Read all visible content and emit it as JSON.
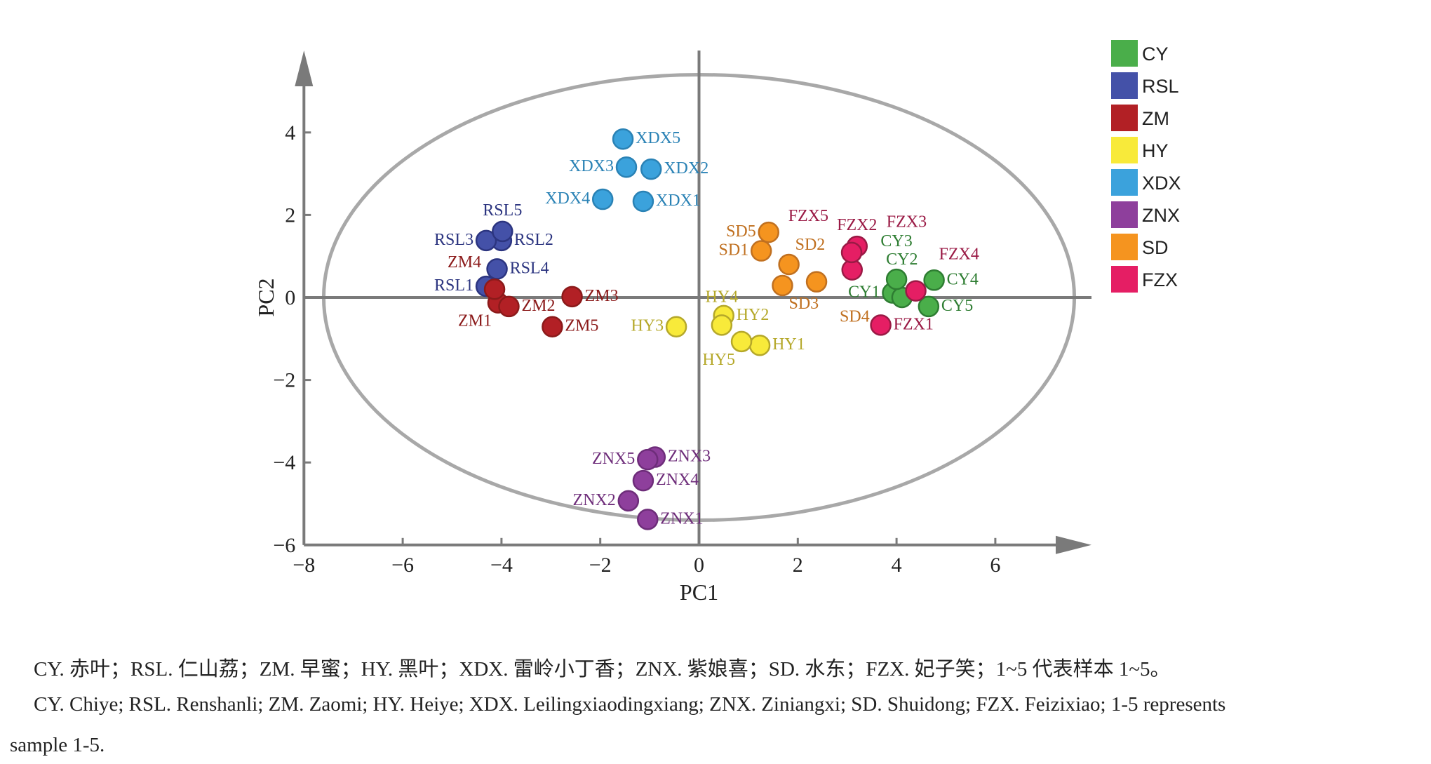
{
  "chart_data": {
    "type": "scatter",
    "xlabel": "PC1",
    "ylabel": "PC2",
    "xlim": [
      -8,
      8
    ],
    "ylim": [
      -6,
      5.5
    ],
    "xticks": [
      -8,
      -6,
      -4,
      -2,
      0,
      2,
      4,
      6
    ],
    "yticks": [
      -6,
      -4,
      -2,
      0,
      2,
      4
    ],
    "xtick_labels": [
      "−8",
      "−6",
      "−4",
      "−2",
      "0",
      "2",
      "4",
      "6"
    ],
    "ytick_labels": [
      "−6",
      "−4",
      "−2",
      "0",
      "2",
      "4"
    ],
    "confidence_ellipse": {
      "center": [
        0,
        0
      ],
      "semi_axes": [
        7.6,
        5.4
      ]
    },
    "legend_position": "top-right",
    "series": [
      {
        "name": "CY",
        "color": "#4aae4a",
        "label_color": "#2e7d32",
        "points": [
          [
            "CY1",
            3.92,
            0.11
          ],
          [
            "CY2",
            4.11,
            0.0
          ],
          [
            "CY3",
            4.0,
            0.44
          ],
          [
            "CY4",
            4.76,
            0.42
          ],
          [
            "CY5",
            4.65,
            -0.22
          ]
        ]
      },
      {
        "name": "RSL",
        "color": "#4451a8",
        "label_color": "#2c3580",
        "points": [
          [
            "RSL1",
            -4.31,
            0.27
          ],
          [
            "RSL2",
            -4.0,
            1.38
          ],
          [
            "RSL3",
            -4.31,
            1.38
          ],
          [
            "RSL4",
            -4.09,
            0.69
          ],
          [
            "RSL5",
            -3.98,
            1.6
          ]
        ]
      },
      {
        "name": "ZM",
        "color": "#b22025",
        "label_color": "#8b1a1a",
        "points": [
          [
            "ZM1",
            -4.07,
            -0.13
          ],
          [
            "ZM2",
            -3.85,
            -0.22
          ],
          [
            "ZM3",
            -2.57,
            0.02
          ],
          [
            "ZM4",
            -4.14,
            0.2
          ],
          [
            "ZM5",
            -2.97,
            -0.71
          ]
        ]
      },
      {
        "name": "HY",
        "color": "#f8ea3a",
        "label_color": "#b5a82a",
        "points": [
          [
            "HY1",
            1.23,
            -1.16
          ],
          [
            "HY2",
            0.5,
            -0.44
          ],
          [
            "HY3",
            -0.46,
            -0.71
          ],
          [
            "HY4",
            0.46,
            -0.67
          ],
          [
            "HY5",
            0.86,
            -1.07
          ]
        ]
      },
      {
        "name": "XDX",
        "color": "#3ba2dc",
        "label_color": "#2a82b5",
        "points": [
          [
            "XDX1",
            -1.13,
            2.33
          ],
          [
            "XDX2",
            -0.97,
            3.11
          ],
          [
            "XDX3",
            -1.47,
            3.16
          ],
          [
            "XDX4",
            -1.95,
            2.38
          ],
          [
            "XDX5",
            -1.54,
            3.84
          ]
        ]
      },
      {
        "name": "ZNX",
        "color": "#8e3f9c",
        "label_color": "#6e2d7a",
        "points": [
          [
            "ZNX1",
            -1.04,
            -5.38
          ],
          [
            "ZNX2",
            -1.43,
            -4.93
          ],
          [
            "ZNX3",
            -0.89,
            -3.87
          ],
          [
            "ZNX4",
            -1.13,
            -4.44
          ],
          [
            "ZNX5",
            -1.04,
            -3.93
          ]
        ]
      },
      {
        "name": "SD",
        "color": "#f5941f",
        "label_color": "#c07020",
        "points": [
          [
            "SD1",
            1.26,
            1.13
          ],
          [
            "SD2",
            1.82,
            0.8
          ],
          [
            "SD3",
            1.69,
            0.29
          ],
          [
            "SD4",
            2.38,
            0.38
          ],
          [
            "SD5",
            1.41,
            1.58
          ]
        ]
      },
      {
        "name": "FZX",
        "color": "#e51e64",
        "label_color": "#9a1a45",
        "points": [
          [
            "FZX1",
            3.68,
            -0.67
          ],
          [
            "FZX2",
            3.2,
            1.24
          ],
          [
            "FZX3",
            3.1,
            0.67
          ],
          [
            "FZX4",
            4.39,
            0.16
          ],
          [
            "FZX5",
            3.09,
            1.09
          ]
        ]
      }
    ]
  },
  "caption": {
    "line1": "CY. 赤叶；RSL. 仁山荔；ZM. 早蜜；HY. 黑叶；XDX. 雷岭小丁香；ZNX. 紫娘喜；SD. 水东；FZX. 妃子笑；1~5 代表样本 1~5。",
    "line2": "CY. Chiye; RSL. Renshanli; ZM. Zaomi; HY. Heiye; XDX. Leilingxiaodingxiang; ZNX. Ziniangxi; SD. Shuidong; FZX. Feizixiao; 1-5 represents",
    "line3": "sample 1-5."
  }
}
